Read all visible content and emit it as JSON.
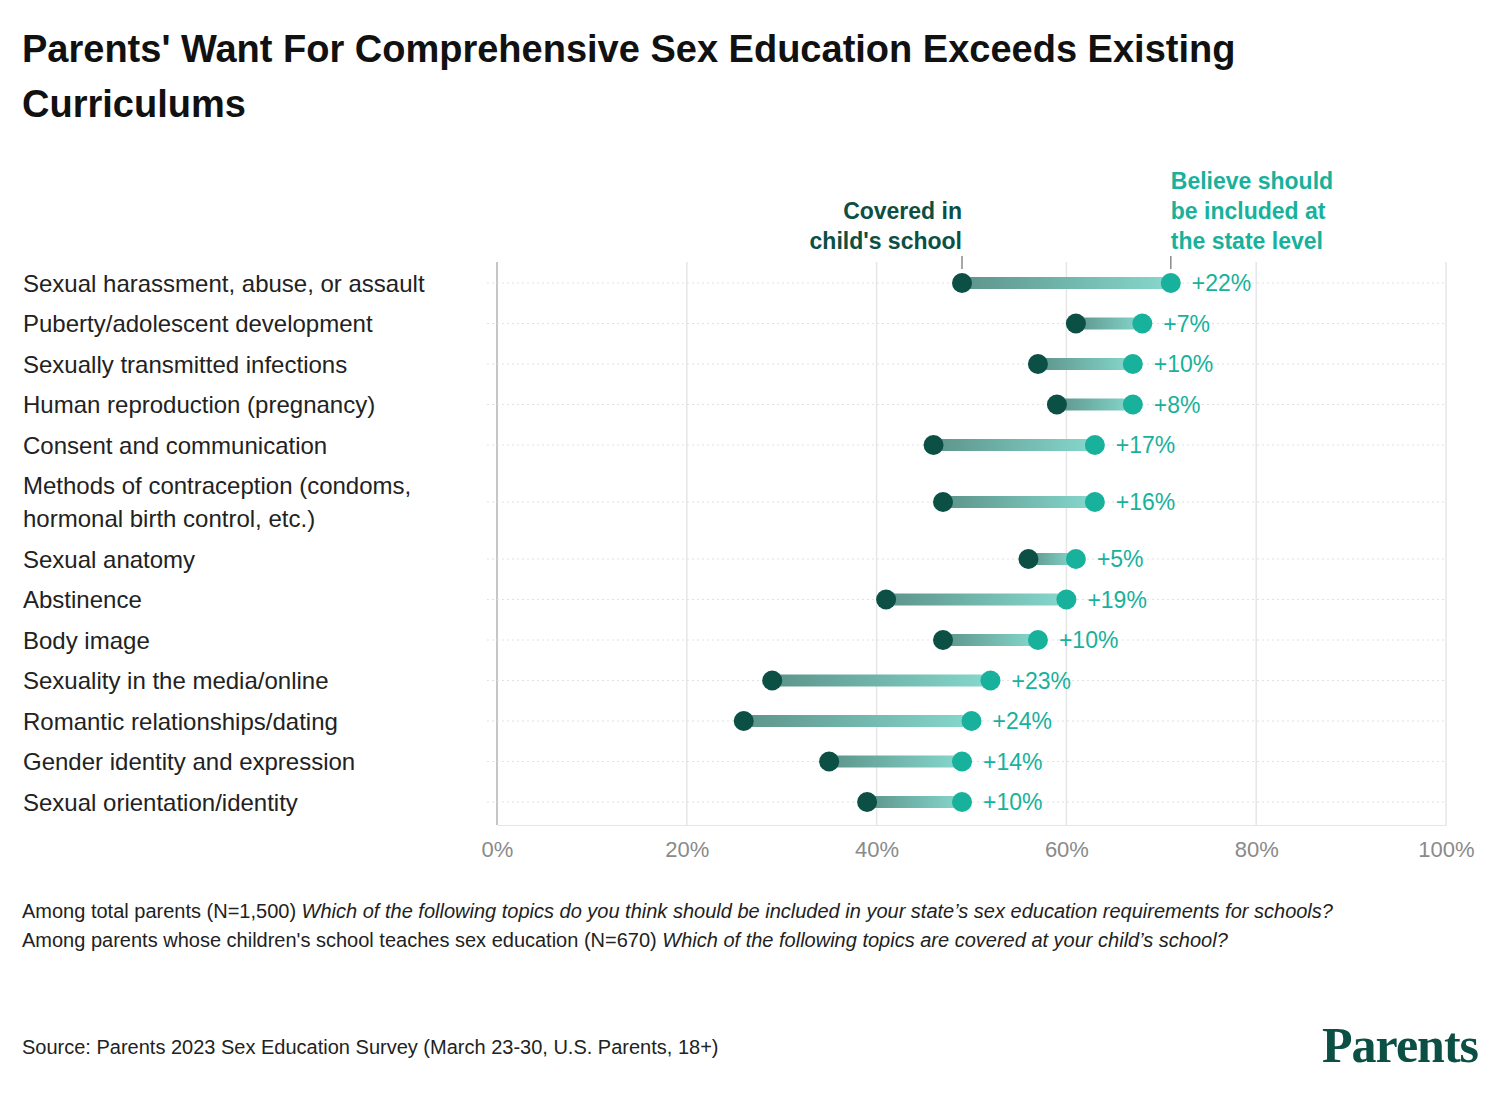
{
  "chart_data": {
    "type": "dumbbell",
    "title": "Parents' Want For Comprehensive Sex Education Exceeds Existing Curriculums",
    "orientation": "horizontal",
    "grid": true,
    "categories": [
      "Sexual harassment, abuse, or assault",
      "Puberty/adolescent development",
      "Sexually transmitted infections",
      "Human reproduction (pregnancy)",
      "Consent and communication",
      "Methods of contraception (condoms, hormonal birth control, etc.)",
      "Sexual anatomy",
      "Abstinence",
      "Body image",
      "Sexuality in the media/online",
      "Romantic relationships/dating",
      "Gender identity and expression",
      "Sexual orientation/identity"
    ],
    "series": [
      {
        "name": "Covered in child's school",
        "color": "#0b4f45",
        "values": [
          49,
          61,
          57,
          59,
          46,
          47,
          56,
          41,
          47,
          29,
          26,
          35,
          39
        ]
      },
      {
        "name": "Believe should be included at the state level",
        "color": "#17b19c",
        "values": [
          71,
          68,
          67,
          67,
          63,
          63,
          61,
          60,
          57,
          52,
          50,
          49,
          49
        ]
      }
    ],
    "differences": {
      "values": [
        22,
        7,
        10,
        8,
        17,
        16,
        5,
        19,
        10,
        23,
        24,
        14,
        10
      ],
      "value_labels": [
        "+22%",
        "+7%",
        "+10%",
        "+8%",
        "+17%",
        "+16%",
        "+5%",
        "+19%",
        "+10%",
        "+23%",
        "+24%",
        "+14%",
        "+10%"
      ]
    },
    "xlim": [
      0,
      100
    ],
    "xticks": [
      {
        "value": 0,
        "label": "0%"
      },
      {
        "value": 20,
        "label": "20%"
      },
      {
        "value": 40,
        "label": "40%"
      },
      {
        "value": 60,
        "label": "60%"
      },
      {
        "value": 80,
        "label": "80%"
      },
      {
        "value": 100,
        "label": "100%"
      }
    ],
    "notes": [
      {
        "text": "Among total parents (N=1,500)",
        "question": "Which of the following topics do you think should be included in your state’s sex education requirements for schools?"
      },
      {
        "text": "Among parents whose children's school teaches sex education (N=670)",
        "question": "Which of the following topics are covered at your child’s school?"
      }
    ],
    "source": "Source: Parents 2023 Sex Education Survey (March 23-30, U.S. Parents, 18+)",
    "logo": "Parents"
  }
}
